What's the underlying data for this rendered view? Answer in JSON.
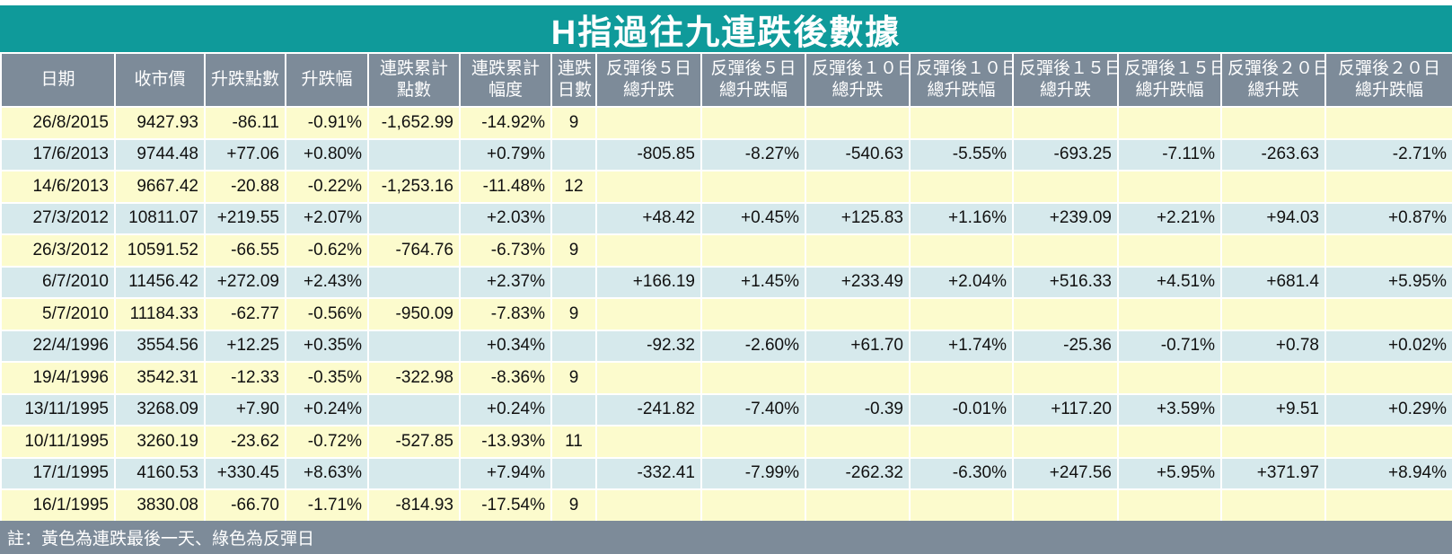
{
  "title": "H指過往九連跌後數據",
  "headers": [
    [
      "日期"
    ],
    [
      "收市價"
    ],
    [
      "升跌點數"
    ],
    [
      "升跌幅"
    ],
    [
      "連跌累計",
      "點數"
    ],
    [
      "連跌累計",
      "幅度"
    ],
    [
      "連跌",
      "日數"
    ],
    [
      "反彈後５日",
      "總升跌"
    ],
    [
      "反彈後５日",
      "總升跌幅"
    ],
    [
      "反彈後１０日",
      "總升跌"
    ],
    [
      "反彈後１０日",
      "總升跌幅"
    ],
    [
      "反彈後１５日",
      "總升跌"
    ],
    [
      "反彈後１５日",
      "總升跌幅"
    ],
    [
      "反彈後２０日",
      "總升跌"
    ],
    [
      "反彈後２０日",
      "總升跌幅"
    ]
  ],
  "rows": [
    {
      "type": "yellow",
      "cells": [
        "26/8/2015",
        "9427.93",
        "-86.11",
        "-0.91%",
        "-1,652.99",
        "-14.92%",
        "9",
        "",
        "",
        "",
        "",
        "",
        "",
        "",
        ""
      ]
    },
    {
      "type": "green",
      "cells": [
        "17/6/2013",
        "9744.48",
        "+77.06",
        "+0.80%",
        "",
        "+0.79%",
        "",
        "-805.85",
        "-8.27%",
        "-540.63",
        "-5.55%",
        "-693.25",
        "-7.11%",
        "-263.63",
        "-2.71%"
      ]
    },
    {
      "type": "yellow",
      "cells": [
        "14/6/2013",
        "9667.42",
        "-20.88",
        "-0.22%",
        "-1,253.16",
        "-11.48%",
        "12",
        "",
        "",
        "",
        "",
        "",
        "",
        "",
        ""
      ]
    },
    {
      "type": "green",
      "cells": [
        "27/3/2012",
        "10811.07",
        "+219.55",
        "+2.07%",
        "",
        "+2.03%",
        "",
        "+48.42",
        "+0.45%",
        "+125.83",
        "+1.16%",
        "+239.09",
        "+2.21%",
        "+94.03",
        "+0.87%"
      ]
    },
    {
      "type": "yellow",
      "cells": [
        "26/3/2012",
        "10591.52",
        "-66.55",
        "-0.62%",
        "-764.76",
        "-6.73%",
        "9",
        "",
        "",
        "",
        "",
        "",
        "",
        "",
        ""
      ]
    },
    {
      "type": "green",
      "cells": [
        "6/7/2010",
        "11456.42",
        "+272.09",
        "+2.43%",
        "",
        "+2.37%",
        "",
        "+166.19",
        "+1.45%",
        "+233.49",
        "+2.04%",
        "+516.33",
        "+4.51%",
        "+681.4",
        "+5.95%"
      ]
    },
    {
      "type": "yellow",
      "cells": [
        "5/7/2010",
        "11184.33",
        "-62.77",
        "-0.56%",
        "-950.09",
        "-7.83%",
        "9",
        "",
        "",
        "",
        "",
        "",
        "",
        "",
        ""
      ]
    },
    {
      "type": "green",
      "cells": [
        "22/4/1996",
        "3554.56",
        "+12.25",
        "+0.35%",
        "",
        "+0.34%",
        "",
        "-92.32",
        "-2.60%",
        "+61.70",
        "+1.74%",
        "-25.36",
        "-0.71%",
        "+0.78",
        "+0.02%"
      ]
    },
    {
      "type": "yellow",
      "cells": [
        "19/4/1996",
        "3542.31",
        "-12.33",
        "-0.35%",
        "-322.98",
        "-8.36%",
        "9",
        "",
        "",
        "",
        "",
        "",
        "",
        "",
        ""
      ]
    },
    {
      "type": "green",
      "cells": [
        "13/11/1995",
        "3268.09",
        "+7.90",
        "+0.24%",
        "",
        "+0.24%",
        "",
        "-241.82",
        "-7.40%",
        "-0.39",
        "-0.01%",
        "+117.20",
        "+3.59%",
        "+9.51",
        "+0.29%"
      ]
    },
    {
      "type": "yellow",
      "cells": [
        "10/11/1995",
        "3260.19",
        "-23.62",
        "-0.72%",
        "-527.85",
        "-13.93%",
        "11",
        "",
        "",
        "",
        "",
        "",
        "",
        "",
        ""
      ]
    },
    {
      "type": "green",
      "cells": [
        "17/1/1995",
        "4160.53",
        "+330.45",
        "+8.63%",
        "",
        "+7.94%",
        "",
        "-332.41",
        "-7.99%",
        "-262.32",
        "-6.30%",
        "+247.56",
        "+5.95%",
        "+371.97",
        "+8.94%"
      ]
    },
    {
      "type": "yellow",
      "cells": [
        "16/1/1995",
        "3830.08",
        "-66.70",
        "-1.71%",
        "-814.93",
        "-17.54%",
        "9",
        "",
        "",
        "",
        "",
        "",
        "",
        "",
        ""
      ]
    }
  ],
  "note": "註：黃色為連跌最後一天、綠色為反彈日",
  "colors": {
    "title_bg": "#0f9a9a",
    "header_bg": "#7d8b99",
    "yellow_row": "#fcfbcd",
    "green_row": "#d6e9ec"
  }
}
